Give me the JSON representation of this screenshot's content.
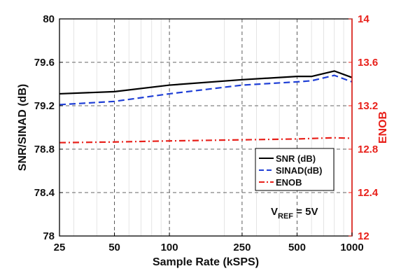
{
  "chart_data": {
    "type": "line",
    "x_scale": "log",
    "x_ticks": [
      25,
      50,
      100,
      250,
      500,
      1000
    ],
    "x_tick_labels": [
      "25",
      "50",
      "100",
      "250",
      "500",
      "1000"
    ],
    "xlim": [
      25,
      1000
    ],
    "ylim_left": [
      78,
      80
    ],
    "y_ticks_left": [
      "78",
      "78.4",
      "78.8",
      "79.2",
      "79.6",
      "80"
    ],
    "ylim_right": [
      12,
      14
    ],
    "y_ticks_right": [
      "12",
      "12.4",
      "12.8",
      "13.2",
      "13.6",
      "14"
    ],
    "xlabel": "Sample Rate (kSPS)",
    "ylabel_left": "SNR/SINAD (dB)",
    "ylabel_right": "ENOB",
    "grid": true,
    "legend_position": "lower-right",
    "annotation": {
      "main": "V",
      "sub": "REF",
      "rest": " = 5V"
    },
    "series": [
      {
        "name": "SNR (dB)",
        "axis": "left",
        "color": "#000000",
        "dash": "solid",
        "x": [
          25,
          50,
          100,
          250,
          500,
          600,
          800,
          1000
        ],
        "y": [
          79.31,
          79.33,
          79.39,
          79.44,
          79.47,
          79.47,
          79.52,
          79.46
        ]
      },
      {
        "name": "SINAD(dB)",
        "axis": "left",
        "color": "#1f3fd6",
        "dash": "dashed",
        "x": [
          25,
          50,
          100,
          250,
          500,
          600,
          800,
          1000
        ],
        "y": [
          79.21,
          79.24,
          79.31,
          79.39,
          79.42,
          79.43,
          79.48,
          79.42
        ]
      },
      {
        "name": "ENOB",
        "axis": "right",
        "color": "#e8201a",
        "dash": "dashdot",
        "x": [
          25,
          50,
          100,
          250,
          500,
          800,
          1000
        ],
        "y": [
          12.86,
          12.866,
          12.876,
          12.886,
          12.894,
          12.905,
          12.9
        ]
      }
    ]
  }
}
